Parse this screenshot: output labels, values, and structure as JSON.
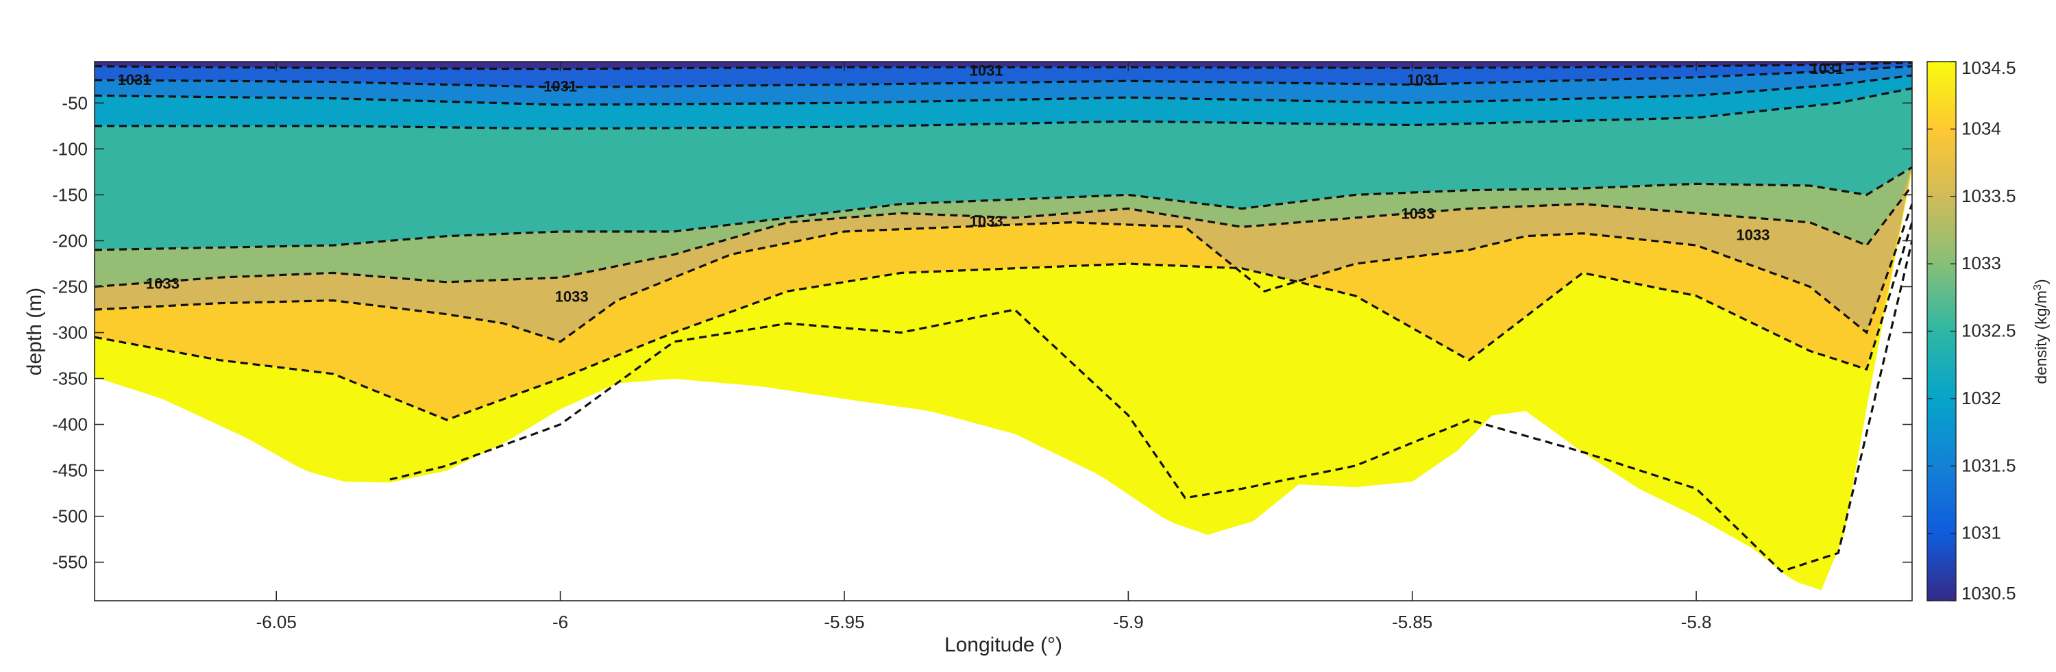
{
  "chart_data": {
    "type": "heatmap",
    "subtype": "filled contour section with dashed isopycnals",
    "xlabel": "Longitude (°)",
    "ylabel": "depth (m)",
    "colorbar_label": "density (kg/m³)",
    "colorbar_label_parts": {
      "base": "density (kg/m",
      "exp": "3",
      "close": ")"
    },
    "xlim": [
      -6.082,
      -5.762
    ],
    "ylim": [
      -592,
      -5
    ],
    "x_ticks": [
      -6.05,
      -6,
      -5.95,
      -5.9,
      -5.85,
      -5.8
    ],
    "x_tick_labels": [
      "-6.05",
      "-6",
      "-5.95",
      "-5.9",
      "-5.85",
      "-5.8"
    ],
    "y_ticks": [
      -50,
      -100,
      -150,
      -200,
      -250,
      -300,
      -350,
      -400,
      -450,
      -500,
      -550
    ],
    "y_tick_labels": [
      "-50",
      "-100",
      "-150",
      "-200",
      "-250",
      "-300",
      "-350",
      "-400",
      "-450",
      "-500",
      "-550"
    ],
    "colorbar_range": [
      1030.5,
      1034.5
    ],
    "colorbar_ticks": [
      1030.5,
      1031,
      1031.5,
      1032,
      1032.5,
      1033,
      1033.5,
      1034,
      1034.5
    ],
    "colorbar_tick_labels": [
      "1030.5",
      "1031",
      "1031.5",
      "1032",
      "1032.5",
      "1033",
      "1033.5",
      "1034",
      "1034.5"
    ],
    "colormap": [
      "#352a87",
      "#0f5cdd",
      "#1481d6",
      "#06a4ca",
      "#2eb7a4",
      "#87bf77",
      "#d1bb59",
      "#fec832",
      "#f9fb0e"
    ],
    "levels": [
      {
        "value": 1030.5,
        "color": "#3a2f8f"
      },
      {
        "value": 1031.0,
        "color": "#1c62d6"
      },
      {
        "value": 1031.5,
        "color": "#1685d4"
      },
      {
        "value": 1032.0,
        "color": "#0aa3c8"
      },
      {
        "value": 1032.5,
        "color": "#35b4a2"
      },
      {
        "value": 1033.0,
        "color": "#95be74"
      },
      {
        "value": 1033.5,
        "color": "#d6b85a"
      },
      {
        "value": 1034.0,
        "color": "#fccc2c"
      },
      {
        "value": 1034.5,
        "color": "#f6f80e"
      }
    ],
    "seafloor": {
      "lon": [
        -6.082,
        -6.07,
        -6.055,
        -6.045,
        -6.038,
        -6.03,
        -6.02,
        -6.01,
        -6.0,
        -5.99,
        -5.98,
        -5.965,
        -5.95,
        -5.935,
        -5.92,
        -5.905,
        -5.893,
        -5.886,
        -5.878,
        -5.87,
        -5.86,
        -5.85,
        -5.842,
        -5.836,
        -5.83,
        -5.82,
        -5.81,
        -5.8,
        -5.79,
        -5.783,
        -5.778,
        -5.774,
        -5.77,
        -5.766,
        -5.762
      ],
      "depth": [
        -348,
        -372,
        -415,
        -450,
        -462,
        -463,
        -450,
        -420,
        -383,
        -355,
        -350,
        -358,
        -372,
        -385,
        -410,
        -455,
        -505,
        -520,
        -505,
        -465,
        -468,
        -462,
        -428,
        -390,
        -385,
        -430,
        -470,
        -500,
        -535,
        -570,
        -580,
        -520,
        -380,
        -250,
        -120
      ]
    },
    "isopycnals": [
      {
        "value": 1031,
        "lon": [
          -6.082,
          -6.04,
          -6.0,
          -5.95,
          -5.9,
          -5.85,
          -5.8,
          -5.775,
          -5.762
        ],
        "depth": [
          -10,
          -12,
          -13,
          -11,
          -11,
          -12,
          -10,
          -8,
          -6
        ]
      },
      {
        "value": 1031,
        "lon": [
          -6.082,
          -6.04,
          -6.0,
          -5.95,
          -5.9,
          -5.85,
          -5.8,
          -5.775,
          -5.762
        ],
        "depth": [
          -25,
          -27,
          -33,
          -30,
          -26,
          -30,
          -22,
          -15,
          -10
        ]
      },
      {
        "value": 1031.5,
        "lon": [
          -6.082,
          -6.04,
          -6.0,
          -5.95,
          -5.9,
          -5.85,
          -5.8,
          -5.775,
          -5.762
        ],
        "depth": [
          -42,
          -45,
          -52,
          -50,
          -44,
          -50,
          -42,
          -30,
          -20
        ]
      },
      {
        "value": 1032,
        "lon": [
          -6.082,
          -6.04,
          -6.0,
          -5.95,
          -5.9,
          -5.85,
          -5.8,
          -5.775,
          -5.762
        ],
        "depth": [
          -75,
          -75,
          -78,
          -76,
          -70,
          -74,
          -66,
          -50,
          -34
        ]
      },
      {
        "value": 1032.5,
        "lon": [
          -6.082,
          -6.04,
          -6.02,
          -6.0,
          -5.98,
          -5.96,
          -5.94,
          -5.92,
          -5.9,
          -5.88,
          -5.86,
          -5.84,
          -5.82,
          -5.8,
          -5.78,
          -5.77,
          -5.762
        ],
        "depth": [
          -210,
          -205,
          -195,
          -190,
          -190,
          -175,
          -160,
          -155,
          -150,
          -165,
          -150,
          -145,
          -143,
          -138,
          -140,
          -150,
          -120
        ]
      },
      {
        "value": 1033,
        "lon": [
          -6.082,
          -6.06,
          -6.04,
          -6.02,
          -6.0,
          -5.98,
          -5.96,
          -5.94,
          -5.92,
          -5.9,
          -5.88,
          -5.86,
          -5.84,
          -5.82,
          -5.8,
          -5.78,
          -5.77,
          -5.762
        ],
        "depth": [
          -250,
          -240,
          -235,
          -245,
          -240,
          -215,
          -180,
          -170,
          -175,
          -165,
          -185,
          -175,
          -165,
          -160,
          -170,
          -180,
          -205,
          -140
        ]
      },
      {
        "value": 1033.5,
        "lon": [
          -6.082,
          -6.06,
          -6.04,
          -6.02,
          -6.01,
          -6.0,
          -5.99,
          -5.97,
          -5.95,
          -5.93,
          -5.91,
          -5.89,
          -5.876,
          -5.86,
          -5.84,
          -5.83,
          -5.82,
          -5.8,
          -5.78,
          -5.77,
          -5.762
        ],
        "depth": [
          -275,
          -268,
          -265,
          -280,
          -290,
          -310,
          -265,
          -215,
          -190,
          -185,
          -180,
          -185,
          -255,
          -225,
          -210,
          -195,
          -192,
          -205,
          -250,
          -300,
          -160
        ]
      },
      {
        "value": 1034,
        "lon": [
          -6.082,
          -6.06,
          -6.04,
          -6.02,
          -6.0,
          -5.98,
          -5.96,
          -5.94,
          -5.92,
          -5.9,
          -5.88,
          -5.86,
          -5.84,
          -5.82,
          -5.8,
          -5.78,
          -5.77,
          -5.762
        ],
        "depth": [
          -305,
          -330,
          -345,
          -395,
          -350,
          -300,
          -255,
          -235,
          -230,
          -225,
          -230,
          -260,
          -330,
          -235,
          -260,
          -320,
          -340,
          -180
        ]
      },
      {
        "value": 1034.5,
        "lon": [
          -6.03,
          -6.02,
          -6.0,
          -5.98,
          -5.96,
          -5.94,
          -5.92,
          -5.9,
          -5.89,
          -5.88,
          -5.86,
          -5.85,
          -5.84,
          -5.82,
          -5.8,
          -5.785,
          -5.775,
          -5.762
        ],
        "depth": [
          -460,
          -445,
          -400,
          -310,
          -290,
          -300,
          -275,
          -390,
          -480,
          -470,
          -445,
          -420,
          -395,
          -430,
          -470,
          -560,
          -540,
          -200
        ]
      }
    ],
    "contour_labels": [
      {
        "text": "1031",
        "lon": -6.075,
        "depth": -26
      },
      {
        "text": "1031",
        "lon": -6.0,
        "depth": -33
      },
      {
        "text": "1031",
        "lon": -5.925,
        "depth": -16
      },
      {
        "text": "1031",
        "lon": -5.848,
        "depth": -26
      },
      {
        "text": "1031",
        "lon": -5.777,
        "depth": -14
      },
      {
        "text": "1033",
        "lon": -6.07,
        "depth": -248
      },
      {
        "text": "1033",
        "lon": -5.998,
        "depth": -262
      },
      {
        "text": "1033",
        "lon": -5.925,
        "depth": -180
      },
      {
        "text": "1033",
        "lon": -5.849,
        "depth": -172
      },
      {
        "text": "1033",
        "lon": -5.79,
        "depth": -195
      }
    ]
  }
}
